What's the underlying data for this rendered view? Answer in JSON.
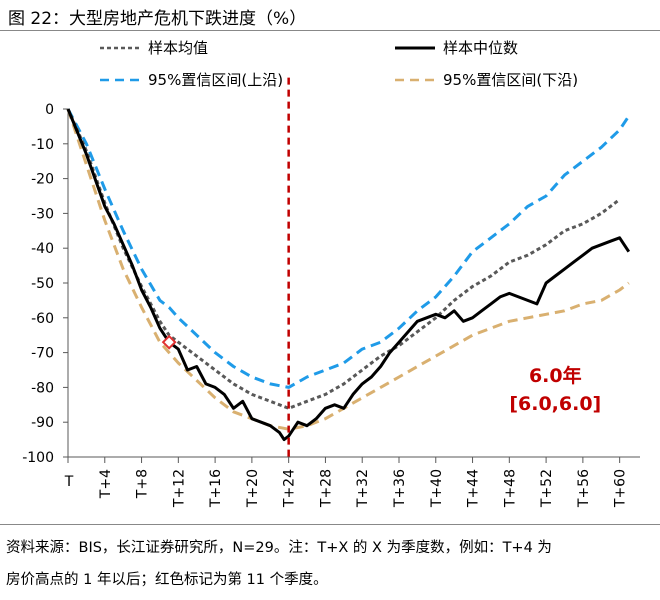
{
  "figure": {
    "title": "图 22：大型房地产危机下跌进度（%）",
    "note_lines": [
      "资料来源：BIS，长江证券研究所，N=29。注：T+X 的 X 为季度数，例如：T+4 为",
      "房价高点的 1 年以后；红色标记为第 11 个季度。"
    ]
  },
  "chart_data": {
    "type": "line",
    "x_ticks": [
      "T",
      "T+4",
      "T+8",
      "T+12",
      "T+16",
      "T+20",
      "T+24",
      "T+28",
      "T+32",
      "T+36",
      "T+40",
      "T+44",
      "T+48",
      "T+52",
      "T+56",
      "T+60"
    ],
    "x_range": [
      0,
      61
    ],
    "ylim": [
      -100,
      0
    ],
    "y_ticks": [
      0,
      -10,
      -20,
      -30,
      -40,
      -50,
      -60,
      -70,
      -80,
      -90,
      -100
    ],
    "legend_position": "top",
    "series": [
      {
        "name": "样本均值",
        "style": "dotted",
        "color": "#595959",
        "x": [
          0,
          2,
          4,
          6,
          8,
          10,
          11,
          12,
          14,
          16,
          18,
          20,
          22,
          24,
          26,
          28,
          30,
          32,
          34,
          36,
          38,
          40,
          42,
          44,
          46,
          48,
          50,
          52,
          54,
          56,
          58,
          60
        ],
        "y": [
          0,
          -12,
          -27,
          -40,
          -51,
          -61,
          -65,
          -67,
          -71,
          -75,
          -79,
          -82,
          -84,
          -86,
          -84,
          -82,
          -79,
          -75,
          -71,
          -68,
          -64,
          -60,
          -55,
          -51,
          -48,
          -44,
          -42,
          -39,
          -35,
          -33,
          -30,
          -26
        ]
      },
      {
        "name": "样本中位数",
        "style": "solid",
        "color": "#000000",
        "x": [
          0,
          2,
          4,
          5,
          6,
          7,
          8,
          9,
          10,
          11,
          12,
          13,
          14,
          15,
          16,
          17,
          18,
          19,
          20,
          21,
          22,
          23,
          23.5,
          24,
          25,
          26,
          27,
          28,
          29,
          30,
          31,
          32,
          33,
          34,
          35,
          36,
          37,
          38,
          39,
          40,
          41,
          42,
          43,
          44,
          45,
          46,
          47,
          48,
          49,
          50,
          51,
          52,
          53,
          54,
          55,
          56,
          57,
          58,
          59,
          60,
          61
        ],
        "y": [
          0,
          -13,
          -28,
          -33,
          -39,
          -45,
          -52,
          -57,
          -63,
          -67,
          -69,
          -75,
          -74,
          -79,
          -80,
          -82,
          -86,
          -84,
          -89,
          -90,
          -91,
          -93,
          -95,
          -94,
          -90,
          -91,
          -89,
          -86,
          -85,
          -86,
          -82,
          -79,
          -77,
          -74,
          -70,
          -67,
          -64,
          -61,
          -60,
          -59,
          -60,
          -58,
          -61,
          -60,
          -58,
          -56,
          -54,
          -53,
          -54,
          -55,
          -56,
          -50,
          -48,
          -46,
          -44,
          -42,
          -40,
          -39,
          -38,
          -37,
          -41
        ]
      },
      {
        "name": "95%置信区间(上沿)",
        "style": "dashed",
        "color": "#1f9be8",
        "x": [
          0,
          2,
          4,
          6,
          8,
          10,
          11,
          12,
          14,
          16,
          18,
          20,
          22,
          24,
          26,
          28,
          30,
          32,
          34,
          36,
          38,
          40,
          42,
          44,
          46,
          48,
          50,
          52,
          54,
          56,
          58,
          60,
          61
        ],
        "y": [
          0,
          -10,
          -23,
          -35,
          -46,
          -55,
          -57,
          -60,
          -65,
          -70,
          -74,
          -77,
          -79,
          -80,
          -77,
          -75,
          -73,
          -69,
          -67,
          -63,
          -58,
          -54,
          -48,
          -41,
          -37,
          -33,
          -28,
          -25,
          -19,
          -15,
          -11,
          -6,
          -2
        ]
      },
      {
        "name": "95%置信区间(下沿)",
        "style": "dashed",
        "color": "#d9b070",
        "x": [
          0,
          2,
          4,
          6,
          8,
          10,
          11,
          12,
          14,
          16,
          18,
          20,
          22,
          24,
          26,
          28,
          30,
          32,
          34,
          36,
          38,
          40,
          42,
          44,
          46,
          48,
          50,
          52,
          54,
          56,
          58,
          60,
          61
        ],
        "y": [
          0,
          -16,
          -32,
          -46,
          -57,
          -67,
          -70,
          -73,
          -78,
          -83,
          -87,
          -89,
          -91,
          -92,
          -91,
          -89,
          -86,
          -83,
          -80,
          -77,
          -74,
          -71,
          -68,
          -65,
          -63,
          -61,
          -60,
          -59,
          -58,
          -56,
          -55,
          -52,
          -50
        ]
      }
    ],
    "markers": [
      {
        "x": 11,
        "y": -67,
        "color": "#e03030",
        "shape": "diamond"
      }
    ],
    "vline": {
      "x": 24,
      "color": "#c00000",
      "style": "dashed"
    },
    "annotations": [
      {
        "text": "6.0年",
        "x": 53,
        "y": -78.5,
        "color": "#c00000"
      },
      {
        "text": "[6.0,6.0]",
        "x": 53,
        "y": -86.5,
        "color": "#c00000"
      }
    ]
  }
}
